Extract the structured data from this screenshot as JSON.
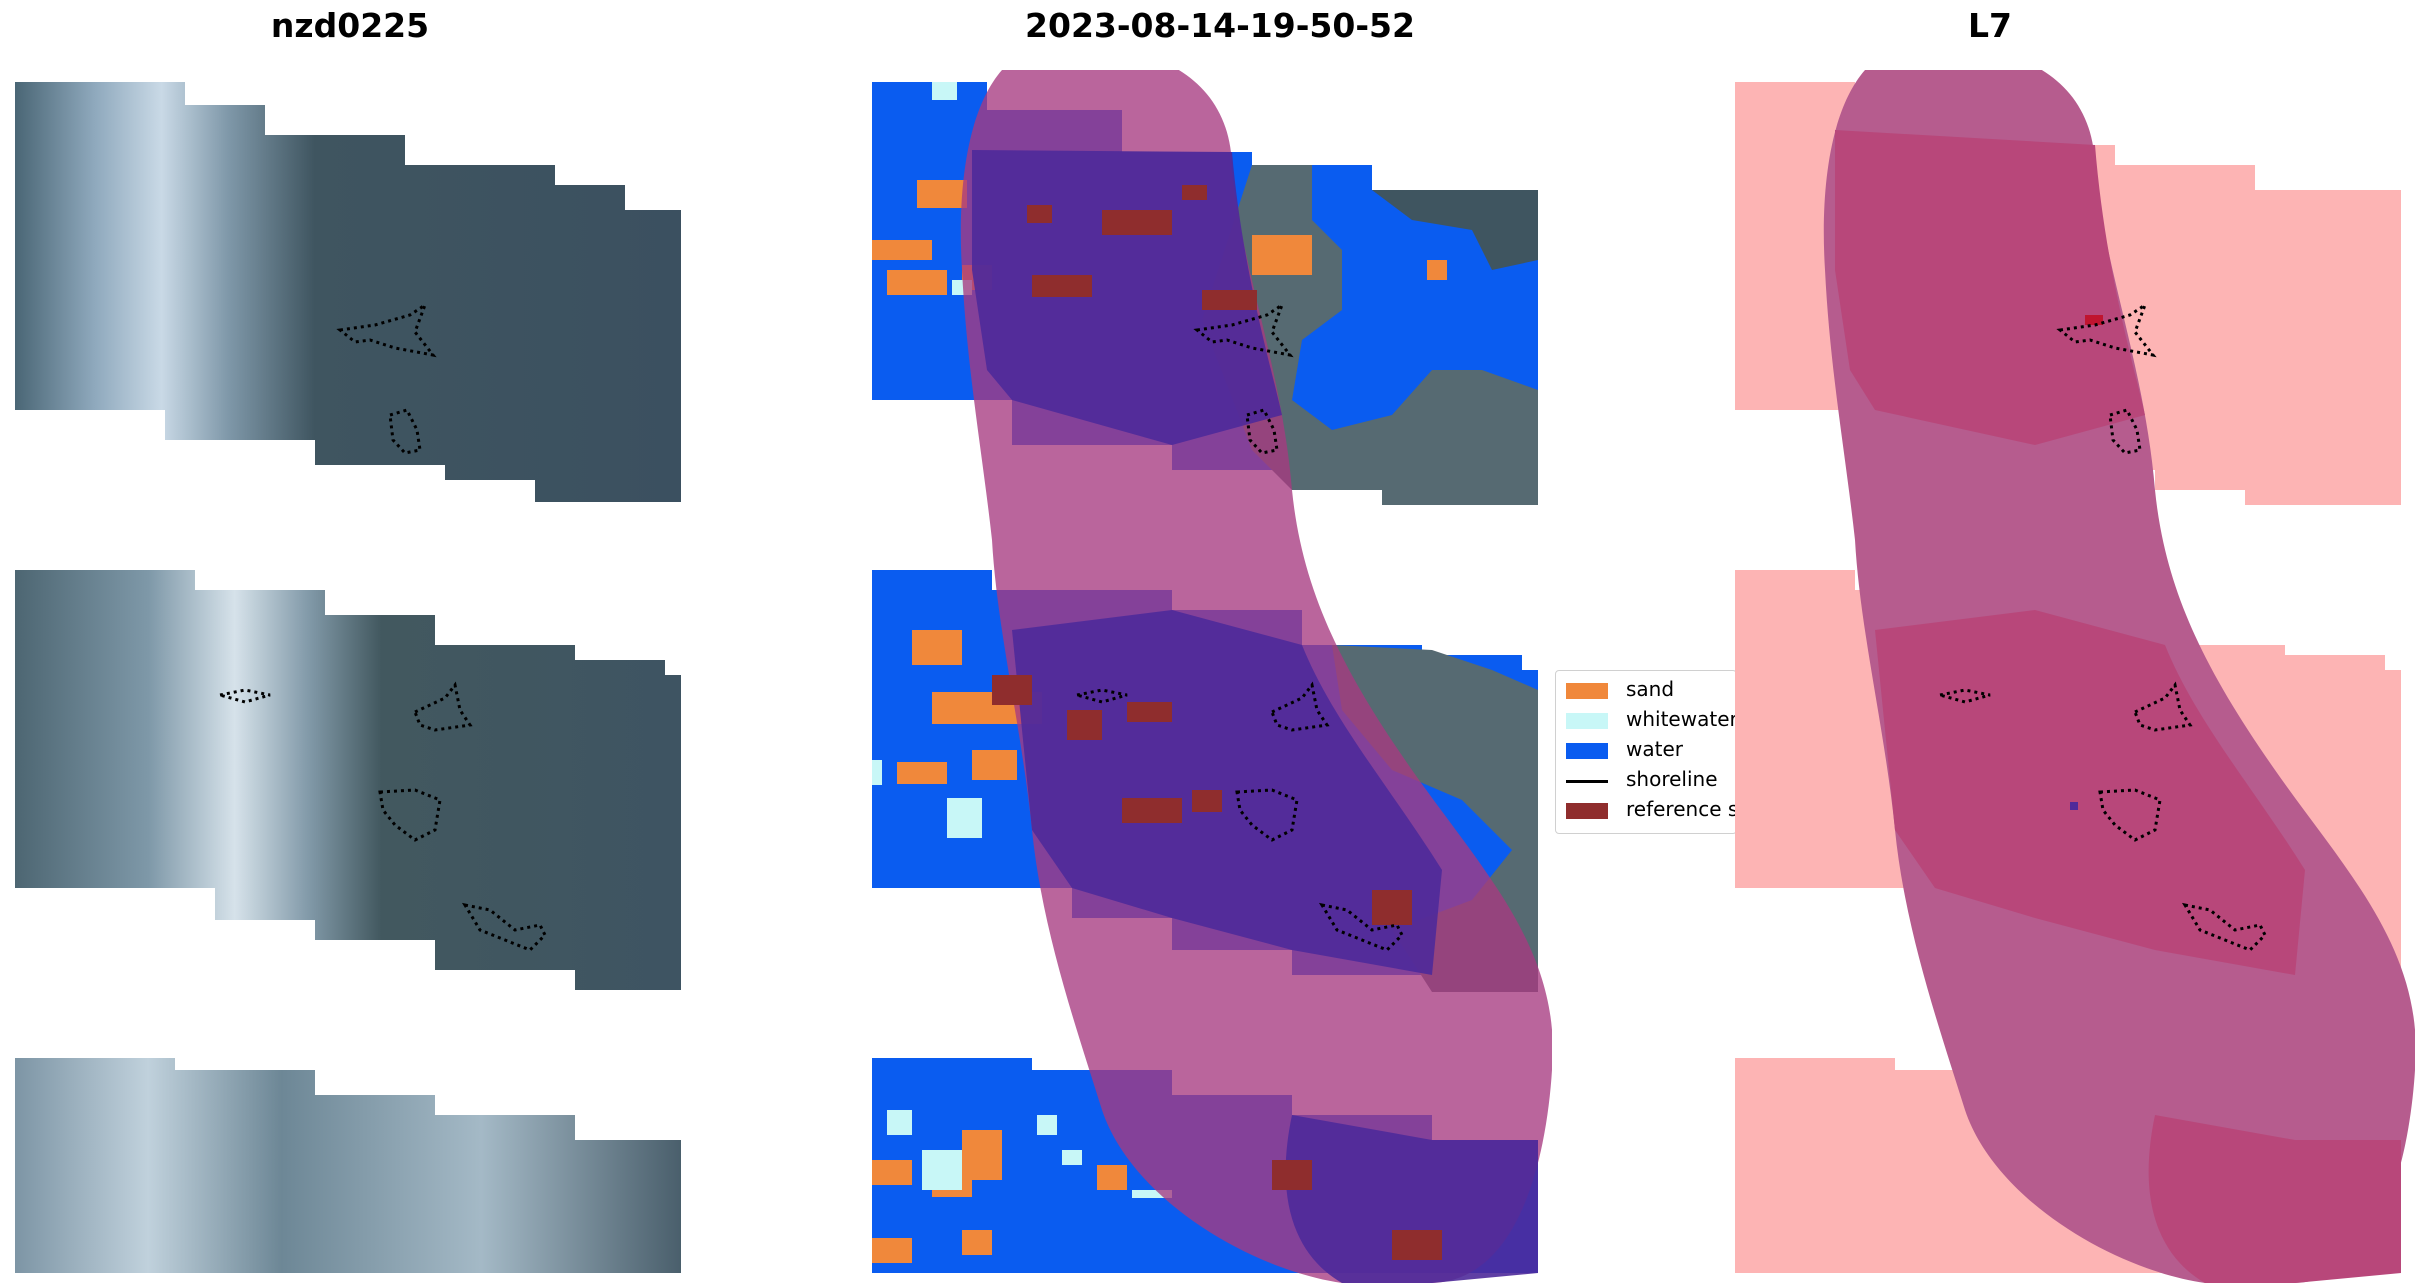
{
  "panels": [
    {
      "title": "nzd0225"
    },
    {
      "title": "2023-08-14-19-50-52"
    },
    {
      "title": "L7"
    }
  ],
  "legend": {
    "items": [
      {
        "label": "sand",
        "color": "#f0883b",
        "kind": "patch"
      },
      {
        "label": "whitewater",
        "color": "#c8f7f7",
        "kind": "patch"
      },
      {
        "label": "water",
        "color": "#0a5cf0",
        "kind": "patch"
      },
      {
        "label": "shoreline",
        "color": "#000000",
        "kind": "line"
      },
      {
        "label": "reference shoreline",
        "color": "#8f2d2d",
        "kind": "patch"
      }
    ]
  },
  "colors": {
    "imagery_base": "#4f6670",
    "imagery_dark": "#3c4f5a",
    "imagery_light": "#b9cbd8",
    "water": "#0a5cf0",
    "sand": "#f0883b",
    "whitewater": "#c8f7f7",
    "reference": "#8f2d2d",
    "buffer": "#a63a80",
    "overlap": "#4e2a9a",
    "l7_pink": "#fdb4b4",
    "l7_overlap": "#b8477a",
    "l7_buffer": "#b65c8e"
  }
}
